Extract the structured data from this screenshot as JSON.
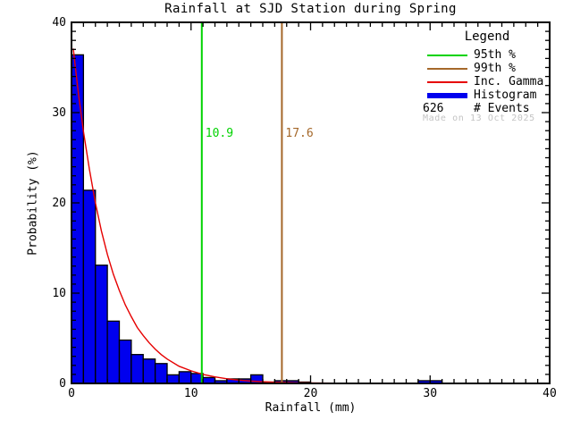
{
  "title": "Rainfall at SJD Station during Spring",
  "made_on": "Made on 13 Oct 2025",
  "colors": {
    "green": "#00D300",
    "brown": "#A5682A",
    "red": "#E60000",
    "blue": "#0000EE",
    "gray": "#C4C4C4",
    "axis": "#000000"
  },
  "legend": {
    "title": "Legend",
    "items": [
      {
        "label": "95th %",
        "swatch": "line",
        "color_key": "green"
      },
      {
        "label": "99th %",
        "swatch": "line",
        "color_key": "brown"
      },
      {
        "label": "Inc. Gamma",
        "swatch": "line",
        "color_key": "red"
      },
      {
        "label": "Histogram",
        "swatch": "bar",
        "color_key": "blue"
      }
    ],
    "events_count": "626",
    "events_label": "# Events"
  },
  "chart_data": {
    "type": "bar",
    "subtype": "histogram-with-fit-line",
    "title": "Rainfall at SJD Station during Spring",
    "xlabel": "Rainfall (mm)",
    "ylabel": "Probability (%)",
    "xlim": [
      0,
      40
    ],
    "ylim": [
      0,
      40
    ],
    "x_major_ticks": [
      0,
      10,
      20,
      30,
      40
    ],
    "y_major_ticks": [
      0,
      10,
      20,
      30,
      40
    ],
    "minor_tick_step": 1,
    "grid": false,
    "legend_position": "top-right",
    "n_events": 626,
    "histogram": {
      "bin_width": 1,
      "bin_starts": [
        0,
        1,
        2,
        3,
        4,
        5,
        6,
        7,
        8,
        9,
        10,
        11,
        12,
        13,
        14,
        15,
        16,
        17,
        18,
        19,
        29,
        30
      ],
      "values": [
        36.4,
        21.4,
        13.1,
        6.9,
        4.8,
        3.2,
        2.7,
        2.2,
        0.95,
        1.3,
        1.1,
        0.65,
        0.3,
        0.5,
        0.5,
        0.95,
        0.15,
        0.3,
        0.3,
        0.15,
        0.3,
        0.3
      ]
    },
    "gamma_curve": {
      "name": "Inc. Gamma",
      "points": [
        [
          0.15,
          37.1
        ],
        [
          0.3,
          35.3
        ],
        [
          0.6,
          31.9
        ],
        [
          1,
          27.9
        ],
        [
          1.5,
          23.7
        ],
        [
          2,
          20.0
        ],
        [
          2.5,
          16.9
        ],
        [
          3,
          14.3
        ],
        [
          3.5,
          12.1
        ],
        [
          4,
          10.3
        ],
        [
          4.5,
          8.7
        ],
        [
          5,
          7.4
        ],
        [
          5.5,
          6.2
        ],
        [
          6,
          5.3
        ],
        [
          6.5,
          4.5
        ],
        [
          7,
          3.8
        ],
        [
          7.5,
          3.2
        ],
        [
          8,
          2.7
        ],
        [
          9,
          1.9
        ],
        [
          10,
          1.4
        ],
        [
          11,
          1.0
        ],
        [
          12,
          0.72
        ],
        [
          13,
          0.51
        ],
        [
          14,
          0.37
        ],
        [
          15,
          0.26
        ],
        [
          16,
          0.19
        ],
        [
          17,
          0.13
        ],
        [
          18,
          0.1
        ],
        [
          19,
          0.07
        ],
        [
          20,
          0.05
        ],
        [
          22,
          0.03
        ],
        [
          24,
          0.02
        ],
        [
          26,
          0.01
        ],
        [
          28,
          0.01
        ],
        [
          30,
          0.01
        ],
        [
          34,
          0.0
        ],
        [
          40,
          0.0
        ]
      ]
    },
    "percentiles": [
      {
        "name": "95th %",
        "value": 10.9,
        "label": "10.9",
        "color_key": "green"
      },
      {
        "name": "99th %",
        "value": 17.6,
        "label": "17.6",
        "color_key": "brown"
      }
    ]
  }
}
